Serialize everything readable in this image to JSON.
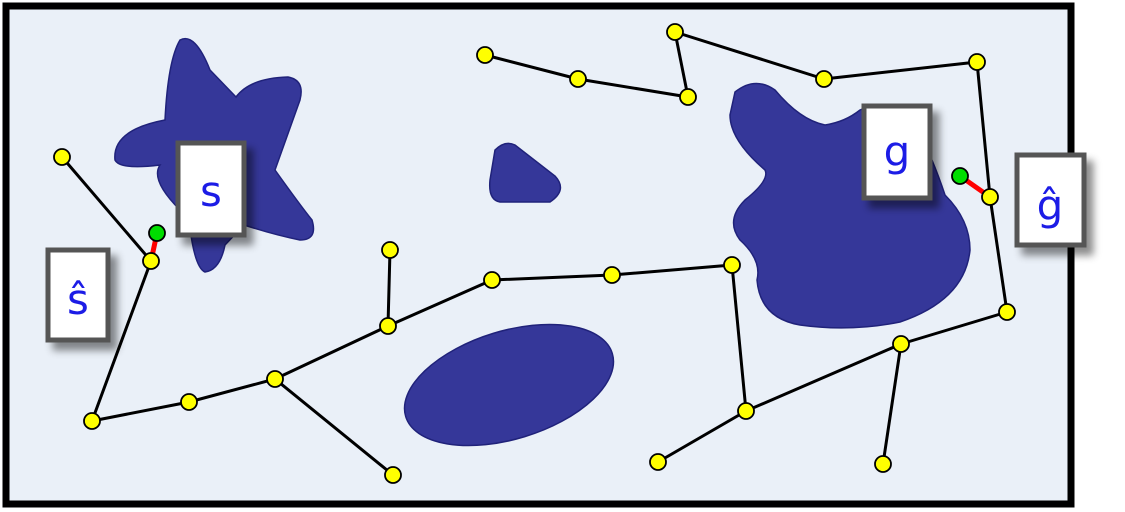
{
  "labels": {
    "start": "s",
    "start_hat": "ŝ",
    "goal": "g",
    "goal_hat": "ĝ"
  },
  "colors": {
    "workspace_fill": "#eaf0f8",
    "workspace_border": "#000000",
    "obstacle": "#353799",
    "node": "#ffff00",
    "edge": "#000000",
    "connector": "#ff0000",
    "endpoint": "#00dd00",
    "label_text": "#1f1fe6",
    "label_border": "#555555"
  }
}
